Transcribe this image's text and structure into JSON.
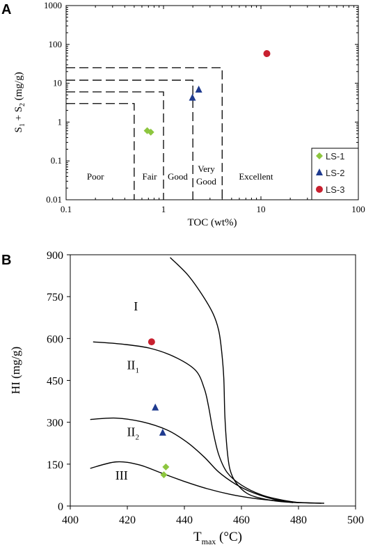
{
  "chart_data": [
    {
      "panel_letter": "A",
      "type": "scatter",
      "x_scale": "log",
      "y_scale": "log",
      "xlim": [
        0.1,
        100
      ],
      "ylim": [
        0.01,
        1000
      ],
      "xlabel": "TOC (wt%)",
      "ylabel": {
        "base": "S",
        "sub1": "1",
        "mid": " + S",
        "sub2": "2",
        "tail": " (mg/g)"
      },
      "x_ticks": [
        "0.1",
        "1",
        "10",
        "100"
      ],
      "y_ticks": [
        "0.01",
        "0.1",
        "1",
        "10",
        "100",
        "1000"
      ],
      "x_tick_values": [
        0.1,
        1,
        10,
        100
      ],
      "y_tick_values": [
        0.01,
        0.1,
        1,
        10,
        100,
        1000
      ],
      "grid": false,
      "legend_position": "bottom-right",
      "classes": [
        {
          "label": "Poor",
          "x": 0.2,
          "y": 0.033
        },
        {
          "label": "Fair",
          "x": 0.72,
          "y": 0.033
        },
        {
          "label": "Good",
          "x": 1.4,
          "y": 0.033
        },
        {
          "label": "Very",
          "x": 2.75,
          "y": 0.052
        },
        {
          "label": "Good",
          "x": 2.75,
          "y": 0.025
        },
        {
          "label": "Excellent",
          "x": 8.9,
          "y": 0.033
        }
      ],
      "boundaries": [
        {
          "x": 0.5,
          "y": 3
        },
        {
          "x": 1,
          "y": 6
        },
        {
          "x": 2,
          "y": 12
        },
        {
          "x": 4,
          "y": 25
        }
      ],
      "series": [
        {
          "name": "LS-1",
          "marker": "diamond",
          "color": "#8dc63f",
          "points": [
            [
              0.68,
              0.6
            ],
            [
              0.74,
              0.55
            ]
          ]
        },
        {
          "name": "LS-2",
          "marker": "triangle",
          "color": "#1f3b8f",
          "points": [
            [
              1.98,
              4.2
            ],
            [
              2.3,
              6.8
            ]
          ]
        },
        {
          "name": "LS-3",
          "marker": "circle",
          "color": "#c8202f",
          "points": [
            [
              11.5,
              58
            ]
          ]
        }
      ]
    },
    {
      "panel_letter": "B",
      "type": "scatter",
      "xlim": [
        400,
        500
      ],
      "ylim": [
        0,
        900
      ],
      "xlabel": {
        "base": "T",
        "sub": "max",
        "tail": " (°C)"
      },
      "ylabel": "HI (mg/g)",
      "x_ticks": [
        "400",
        "420",
        "440",
        "460",
        "480",
        "500"
      ],
      "y_ticks": [
        "0",
        "150",
        "300",
        "450",
        "600",
        "750",
        "900"
      ],
      "x_tick_values": [
        400,
        420,
        440,
        460,
        480,
        500
      ],
      "y_tick_values": [
        0,
        150,
        300,
        450,
        600,
        750,
        900
      ],
      "grid": false,
      "zones": [
        {
          "base": "I",
          "sub": "",
          "x": 423,
          "y": 700
        },
        {
          "base": "II",
          "sub": "1",
          "x": 422,
          "y": 490
        },
        {
          "base": "II",
          "sub": "2",
          "x": 422,
          "y": 250
        },
        {
          "base": "III",
          "sub": "",
          "x": 418,
          "y": 95
        }
      ],
      "curves": [
        [
          [
            435,
            890
          ],
          [
            441,
            830
          ],
          [
            446,
            760
          ],
          [
            450,
            690
          ],
          [
            452,
            630
          ],
          [
            453,
            560
          ],
          [
            453.8,
            460
          ],
          [
            454.2,
            320
          ],
          [
            455,
            200
          ],
          [
            456,
            130
          ],
          [
            458,
            85
          ],
          [
            462,
            45
          ],
          [
            468,
            25
          ],
          [
            476,
            14
          ],
          [
            488,
            10
          ]
        ],
        [
          [
            408,
            588
          ],
          [
            418,
            580
          ],
          [
            428,
            565
          ],
          [
            437,
            532
          ],
          [
            444,
            485
          ],
          [
            447,
            420
          ],
          [
            448.5,
            355
          ],
          [
            450,
            270
          ],
          [
            452,
            185
          ],
          [
            455,
            120
          ],
          [
            460,
            75
          ],
          [
            467,
            40
          ],
          [
            474,
            22
          ],
          [
            480,
            12
          ]
        ],
        [
          [
            407,
            310
          ],
          [
            416,
            315
          ],
          [
            425,
            302
          ],
          [
            434,
            272
          ],
          [
            441,
            228
          ],
          [
            447,
            175
          ],
          [
            452,
            122
          ],
          [
            458,
            78
          ],
          [
            464,
            48
          ],
          [
            471,
            25
          ],
          [
            478,
            12
          ]
        ],
        [
          [
            407,
            135
          ],
          [
            416,
            158
          ],
          [
            424,
            148
          ],
          [
            432,
            118
          ],
          [
            440,
            88
          ],
          [
            448,
            62
          ],
          [
            456,
            42
          ],
          [
            464,
            28
          ],
          [
            472,
            19
          ],
          [
            480,
            13
          ],
          [
            489,
            10
          ]
        ]
      ],
      "series": [
        {
          "name": "LS-1",
          "marker": "diamond",
          "color": "#8dc63f",
          "points": [
            [
              433.5,
              140
            ],
            [
              432.8,
              112
            ]
          ]
        },
        {
          "name": "LS-2",
          "marker": "triangle",
          "color": "#1f3b8f",
          "points": [
            [
              429.8,
              352
            ],
            [
              432.4,
              262
            ]
          ]
        },
        {
          "name": "LS-3",
          "marker": "circle",
          "color": "#c8202f",
          "points": [
            [
              428.5,
              588
            ]
          ]
        }
      ]
    }
  ]
}
